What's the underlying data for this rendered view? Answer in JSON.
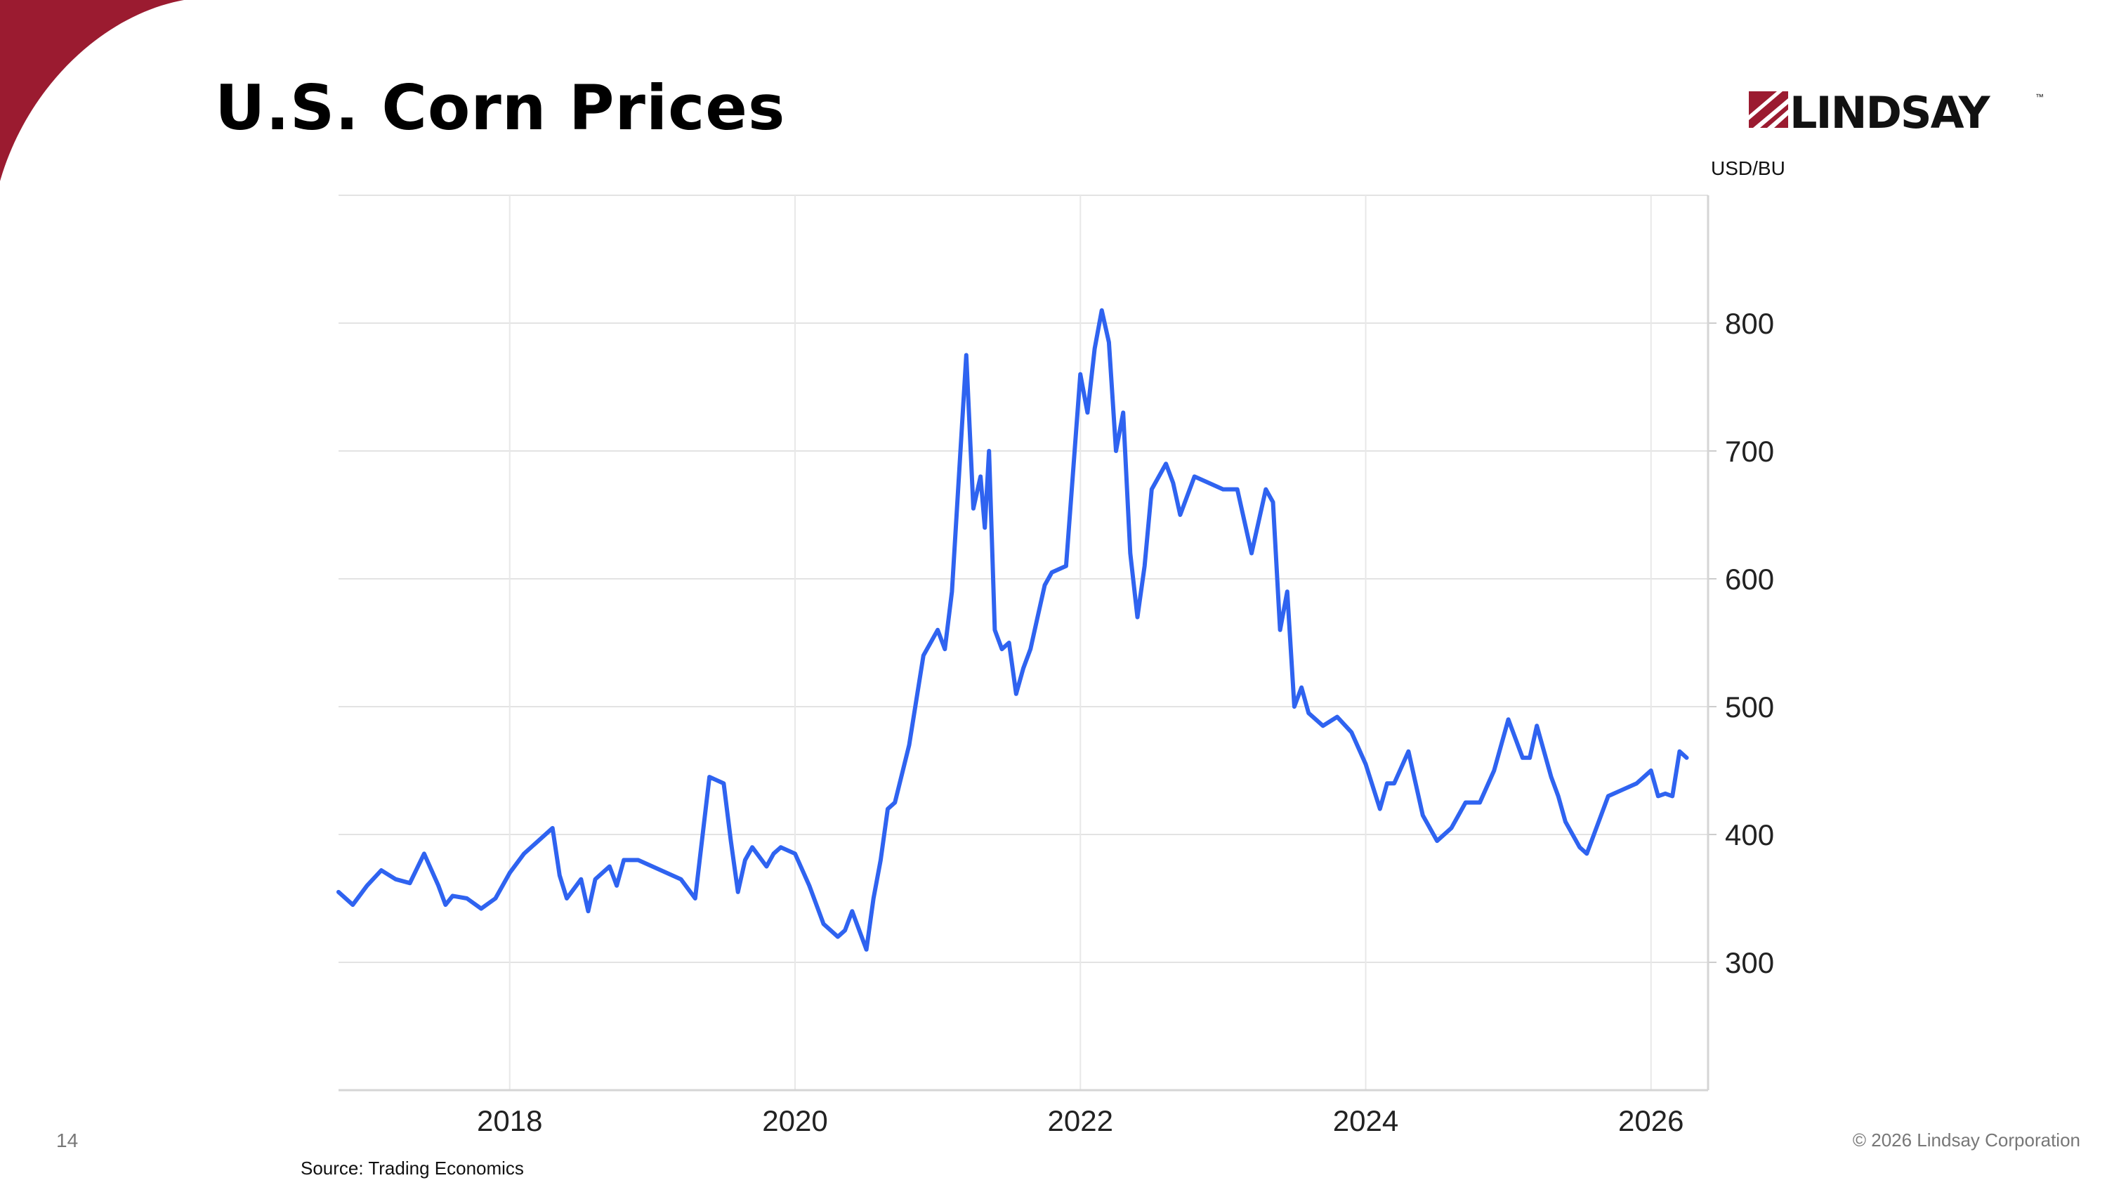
{
  "slide": {
    "title": "U.S. Corn Prices",
    "logo_text": "LINDSAY",
    "logo_tm": "™",
    "page_number": "14",
    "copyright": "© 2026 Lindsay Corporation",
    "source": "Source: Trading Economics",
    "accent_color": "#9b1b30"
  },
  "chart_data": {
    "type": "line",
    "title": "",
    "xlabel": "",
    "ylabel": "USD/BU",
    "xlim": [
      2016.8,
      2026.4
    ],
    "ylim": [
      200,
      900
    ],
    "x_ticks": [
      2018,
      2020,
      2022,
      2024,
      2026
    ],
    "x_tick_labels": [
      "2018",
      "2020",
      "2022",
      "2024",
      "2026"
    ],
    "y_ticks": [
      300,
      400,
      500,
      600,
      700,
      800
    ],
    "y_tick_labels": [
      "300",
      "400",
      "500",
      "600",
      "700",
      "800"
    ],
    "grid": true,
    "legend": "none",
    "line_color": "#2f63f0",
    "series": [
      {
        "x": [
          2016.8,
          2016.9,
          2017.0,
          2017.1,
          2017.2,
          2017.3,
          2017.4,
          2017.5,
          2017.55,
          2017.6,
          2017.7,
          2017.8,
          2017.9,
          2018.0,
          2018.1,
          2018.2,
          2018.3,
          2018.35,
          2018.4,
          2018.5,
          2018.55,
          2018.6,
          2018.7,
          2018.75,
          2018.8,
          2018.9,
          2019.0,
          2019.1,
          2019.2,
          2019.3,
          2019.4,
          2019.5,
          2019.55,
          2019.6,
          2019.65,
          2019.7,
          2019.8,
          2019.85,
          2019.9,
          2020.0,
          2020.1,
          2020.2,
          2020.3,
          2020.35,
          2020.4,
          2020.5,
          2020.55,
          2020.6,
          2020.65,
          2020.7,
          2020.8,
          2020.9,
          2021.0,
          2021.05,
          2021.1,
          2021.2,
          2021.25,
          2021.3,
          2021.33,
          2021.36,
          2021.4,
          2021.45,
          2021.5,
          2021.55,
          2021.6,
          2021.65,
          2021.7,
          2021.75,
          2021.8,
          2021.9,
          2022.0,
          2022.05,
          2022.1,
          2022.15,
          2022.2,
          2022.25,
          2022.3,
          2022.35,
          2022.4,
          2022.45,
          2022.5,
          2022.55,
          2022.6,
          2022.65,
          2022.7,
          2022.8,
          2022.9,
          2023.0,
          2023.1,
          2023.2,
          2023.3,
          2023.35,
          2023.4,
          2023.45,
          2023.5,
          2023.55,
          2023.6,
          2023.7,
          2023.8,
          2023.9,
          2024.0,
          2024.1,
          2024.15,
          2024.2,
          2024.3,
          2024.35,
          2024.4,
          2024.5,
          2024.6,
          2024.7,
          2024.8,
          2024.9,
          2025.0,
          2025.1,
          2025.15,
          2025.2,
          2025.3,
          2025.35,
          2025.4,
          2025.5,
          2025.55,
          2025.6,
          2025.7,
          2025.8,
          2025.9,
          2026.0,
          2026.05,
          2026.1,
          2026.15,
          2026.2,
          2026.25
        ],
        "y": [
          355,
          345,
          360,
          372,
          365,
          362,
          385,
          360,
          345,
          352,
          350,
          342,
          350,
          370,
          385,
          395,
          405,
          368,
          350,
          365,
          340,
          365,
          375,
          360,
          380,
          380,
          375,
          370,
          365,
          350,
          445,
          440,
          395,
          355,
          380,
          390,
          375,
          385,
          390,
          385,
          360,
          330,
          320,
          325,
          340,
          310,
          350,
          380,
          420,
          425,
          470,
          540,
          560,
          545,
          590,
          775,
          655,
          680,
          640,
          700,
          560,
          545,
          550,
          510,
          530,
          545,
          570,
          595,
          605,
          610,
          760,
          730,
          780,
          810,
          785,
          700,
          730,
          620,
          570,
          610,
          670,
          680,
          690,
          675,
          650,
          680,
          675,
          670,
          670,
          620,
          670,
          660,
          560,
          590,
          500,
          515,
          495,
          485,
          492,
          480,
          455,
          420,
          440,
          440,
          465,
          440,
          415,
          395,
          405,
          425,
          425,
          450,
          490,
          460,
          460,
          485,
          445,
          430,
          410,
          390,
          385,
          400,
          430,
          435,
          440,
          450,
          430,
          432,
          430,
          465,
          460
        ]
      }
    ]
  }
}
